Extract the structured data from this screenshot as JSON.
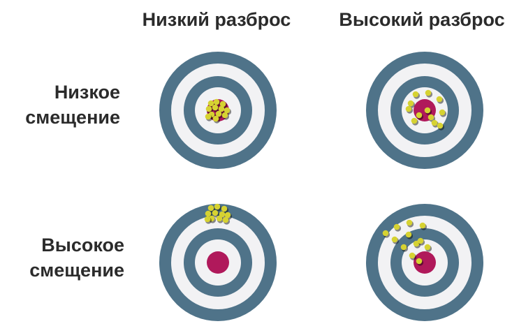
{
  "columns": {
    "low_variance": "Низкий разброс",
    "high_variance": "Высокий разброс"
  },
  "rows": {
    "low_bias": [
      "Низкое",
      "смещение"
    ],
    "high_bias": [
      "Высокое",
      "смещение"
    ]
  },
  "colors": {
    "ring_dark": "#4f7389",
    "ring_light": "#f2f2f4",
    "bullseye": "#b0195b",
    "hit": "#d6d232",
    "text": "#2b2b2b"
  }
}
